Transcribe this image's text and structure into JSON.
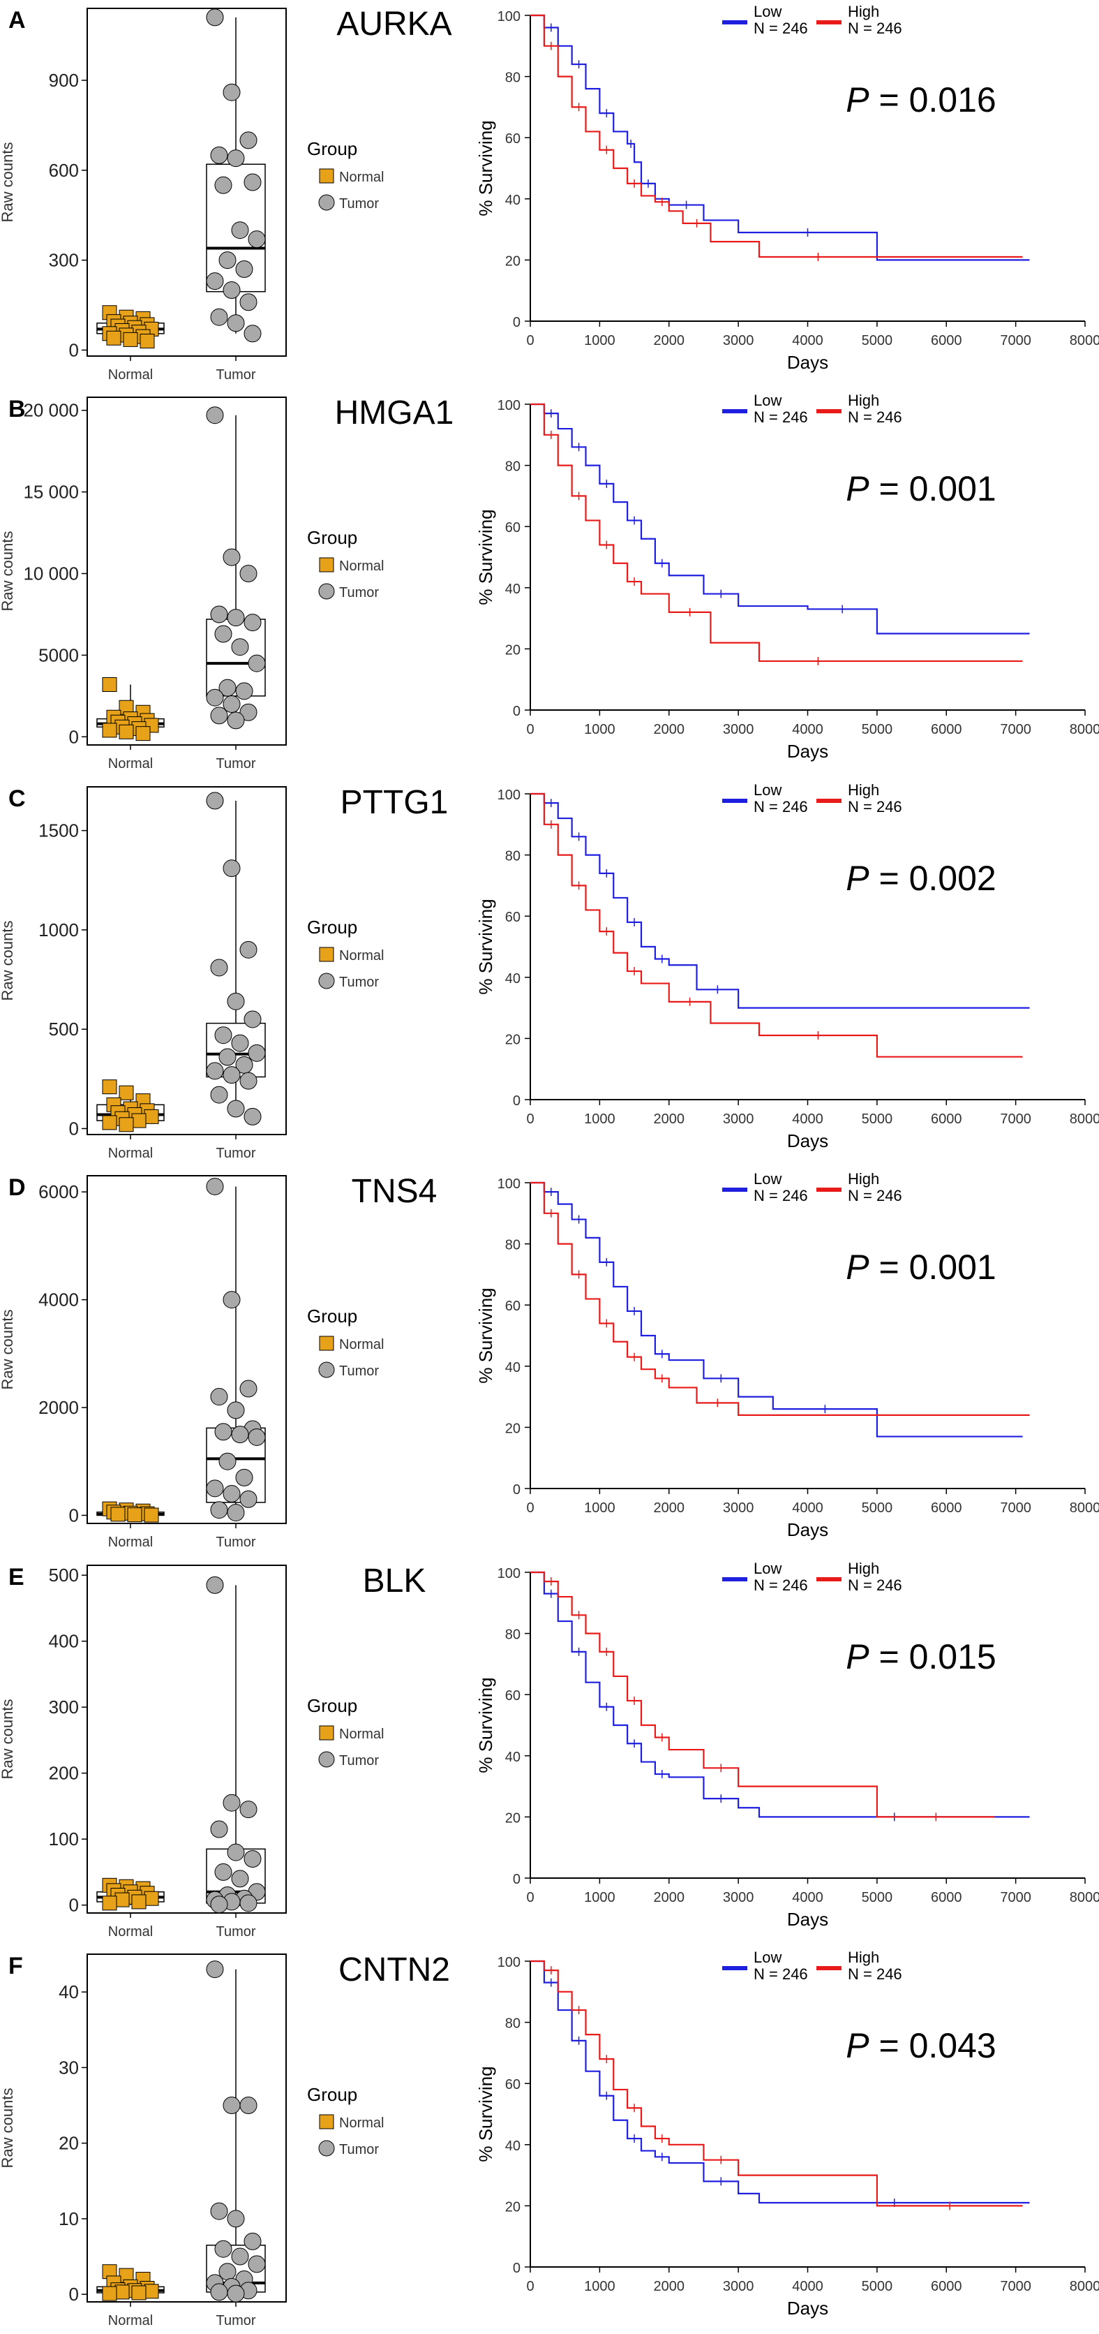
{
  "figure": {
    "panels": [
      {
        "letter": "A",
        "gene": "AURKA",
        "p_value": "0.016"
      },
      {
        "letter": "B",
        "gene": "HMGA1",
        "p_value": "0.001"
      },
      {
        "letter": "C",
        "gene": "PTTG1",
        "p_value": "0.002"
      },
      {
        "letter": "D",
        "gene": "TNS4",
        "p_value": "0.001"
      },
      {
        "letter": "E",
        "gene": "BLK",
        "p_value": "0.015"
      },
      {
        "letter": "F",
        "gene": "CNTN2",
        "p_value": "0.043"
      }
    ],
    "p_symbol": "P",
    "p_equals": " = ",
    "box_legend": {
      "title": "Group",
      "normal": "Normal",
      "tumor": "Tumor"
    },
    "km_legend": {
      "low": "Low",
      "high": "High",
      "n_low": "N = 246",
      "n_high": "N = 246"
    },
    "box_ylabel": "Raw counts",
    "box_categories": [
      "Normal",
      "Tumor"
    ],
    "km_ylabel": "% Surviving",
    "km_xlabel": "Days",
    "km_xticks": [
      "0",
      "1000",
      "2000",
      "3000",
      "4000",
      "5000",
      "6000",
      "7000",
      "8000"
    ],
    "km_yticks": [
      "0",
      "20",
      "40",
      "60",
      "80",
      "100"
    ]
  },
  "colors": {
    "normal": "#E8A21A",
    "tumor": "#A9A9A9",
    "low": "#1F1FE0",
    "high": "#E81A1A"
  },
  "chart_data": [
    {
      "type": "box",
      "gene": "AURKA",
      "ylabel": "Raw counts",
      "categories": [
        "Normal",
        "Tumor"
      ],
      "yticks": [
        "0",
        "300",
        "600",
        "900"
      ],
      "ylim": [
        -20,
        1140
      ],
      "normal": {
        "q1": 55,
        "median": 70,
        "q3": 90,
        "min": 30,
        "max": 125,
        "points": [
          125,
          110,
          105,
          95,
          90,
          85,
          80,
          75,
          70,
          65,
          60,
          55,
          50,
          45,
          40,
          35,
          30
        ]
      },
      "tumor": {
        "q1": 195,
        "median": 340,
        "q3": 620,
        "min": 55,
        "max": 1110,
        "points": [
          1110,
          860,
          700,
          650,
          640,
          560,
          550,
          400,
          370,
          300,
          270,
          230,
          200,
          160,
          110,
          90,
          55
        ]
      }
    },
    {
      "type": "box",
      "gene": "HMGA1",
      "ylabel": "Raw counts",
      "categories": [
        "Normal",
        "Tumor"
      ],
      "yticks": [
        "0",
        "5000",
        "10 000",
        "15 000",
        "20 000"
      ],
      "ylim": [
        -500,
        20800
      ],
      "normal": {
        "q1": 600,
        "median": 800,
        "q3": 1100,
        "min": 200,
        "max": 3200,
        "points": [
          3200,
          1800,
          1500,
          1200,
          1100,
          1000,
          900,
          800,
          700,
          600,
          500,
          400,
          300,
          200
        ]
      },
      "tumor": {
        "q1": 2500,
        "median": 4500,
        "q3": 7200,
        "min": 900,
        "max": 19700,
        "points": [
          19700,
          11000,
          10000,
          7500,
          7300,
          7000,
          6300,
          5500,
          4500,
          3000,
          2800,
          2400,
          2000,
          1500,
          1300,
          1000
        ]
      }
    },
    {
      "type": "box",
      "gene": "PTTG1",
      "ylabel": "Raw counts",
      "categories": [
        "Normal",
        "Tumor"
      ],
      "yticks": [
        "0",
        "500",
        "1000",
        "1500"
      ],
      "ylim": [
        -30,
        1720
      ],
      "normal": {
        "q1": 40,
        "median": 70,
        "q3": 120,
        "min": 10,
        "max": 210,
        "points": [
          210,
          180,
          140,
          120,
          100,
          90,
          80,
          70,
          60,
          50,
          40,
          30,
          20
        ]
      },
      "tumor": {
        "q1": 260,
        "median": 375,
        "q3": 530,
        "min": 60,
        "max": 1650,
        "points": [
          1650,
          1310,
          900,
          810,
          640,
          550,
          470,
          430,
          380,
          360,
          320,
          290,
          270,
          240,
          170,
          100,
          60
        ]
      }
    },
    {
      "type": "box",
      "gene": "TNS4",
      "ylabel": "Raw counts",
      "categories": [
        "Normal",
        "Tumor"
      ],
      "yticks": [
        "0",
        "2000",
        "4000",
        "6000"
      ],
      "ylim": [
        -150,
        6300
      ],
      "normal": {
        "q1": 0,
        "median": 20,
        "q3": 60,
        "min": 0,
        "max": 120,
        "points": [
          120,
          100,
          80,
          60,
          40,
          30,
          20,
          10,
          5
        ]
      },
      "tumor": {
        "q1": 240,
        "median": 1050,
        "q3": 1620,
        "min": 0,
        "max": 6100,
        "points": [
          6100,
          4000,
          2350,
          2200,
          1950,
          1600,
          1550,
          1500,
          1450,
          1000,
          700,
          500,
          400,
          300,
          100,
          50
        ]
      }
    },
    {
      "type": "box",
      "gene": "BLK",
      "ylabel": "Raw counts",
      "categories": [
        "Normal",
        "Tumor"
      ],
      "yticks": [
        "0",
        "100",
        "200",
        "300",
        "400",
        "500"
      ],
      "ylim": [
        -12,
        515
      ],
      "normal": {
        "q1": 5,
        "median": 12,
        "q3": 20,
        "min": 0,
        "max": 30,
        "points": [
          30,
          28,
          25,
          22,
          20,
          18,
          15,
          12,
          10,
          8,
          5,
          3
        ]
      },
      "tumor": {
        "q1": 3,
        "median": 20,
        "q3": 85,
        "min": 0,
        "max": 485,
        "points": [
          485,
          155,
          145,
          115,
          80,
          70,
          50,
          40,
          20,
          15,
          10,
          8,
          5,
          3,
          1
        ]
      }
    },
    {
      "type": "box",
      "gene": "CNTN2",
      "ylabel": "Raw counts",
      "categories": [
        "Normal",
        "Tumor"
      ],
      "yticks": [
        "0",
        "10",
        "20",
        "30",
        "40"
      ],
      "ylim": [
        -1,
        45
      ],
      "normal": {
        "q1": 0.2,
        "median": 0.5,
        "q3": 1.0,
        "min": 0,
        "max": 3,
        "points": [
          3,
          2.5,
          2,
          1.5,
          1,
          0.8,
          0.6,
          0.5,
          0.4,
          0.3,
          0.2,
          0.1
        ]
      },
      "tumor": {
        "q1": 0.3,
        "median": 1.5,
        "q3": 6.5,
        "min": 0,
        "max": 43,
        "points": [
          43,
          25,
          25,
          11,
          10,
          7,
          6,
          5,
          4,
          3,
          2,
          1.5,
          1,
          0.5,
          0.3,
          0.1
        ]
      }
    },
    {
      "type": "line",
      "gene": "AURKA",
      "xlabel": "Days",
      "ylabel": "% Surviving",
      "xlim": [
        0,
        8000
      ],
      "ylim": [
        0,
        100
      ],
      "p_value": "0.016",
      "series": [
        {
          "name": "Low",
          "x": [
            0,
            200,
            400,
            600,
            800,
            1000,
            1200,
            1400,
            1500,
            1600,
            1800,
            2000,
            2500,
            3000,
            5000,
            7200
          ],
          "y": [
            100,
            96,
            90,
            84,
            76,
            68,
            62,
            58,
            52,
            45,
            40,
            38,
            33,
            29,
            20,
            20
          ]
        },
        {
          "name": "High",
          "x": [
            0,
            200,
            400,
            600,
            800,
            1000,
            1200,
            1400,
            1600,
            1800,
            2000,
            2200,
            2600,
            3300,
            5000,
            7100
          ],
          "y": [
            100,
            90,
            80,
            70,
            62,
            56,
            50,
            45,
            41,
            39,
            36,
            32,
            26,
            21,
            21,
            21
          ]
        }
      ]
    },
    {
      "type": "line",
      "gene": "HMGA1",
      "xlabel": "Days",
      "ylabel": "% Surviving",
      "xlim": [
        0,
        8000
      ],
      "ylim": [
        0,
        100
      ],
      "p_value": "0.001",
      "series": [
        {
          "name": "Low",
          "x": [
            0,
            200,
            400,
            600,
            800,
            1000,
            1200,
            1400,
            1600,
            1800,
            2000,
            2500,
            3000,
            4000,
            5000,
            7200
          ],
          "y": [
            100,
            97,
            92,
            86,
            80,
            74,
            68,
            62,
            56,
            48,
            44,
            38,
            34,
            33,
            25,
            25
          ]
        },
        {
          "name": "High",
          "x": [
            0,
            200,
            400,
            600,
            800,
            1000,
            1200,
            1400,
            1600,
            2000,
            2600,
            3300,
            5000,
            7100
          ],
          "y": [
            100,
            90,
            80,
            70,
            62,
            54,
            48,
            42,
            38,
            32,
            22,
            16,
            16,
            16
          ]
        }
      ]
    },
    {
      "type": "line",
      "gene": "PTTG1",
      "xlabel": "Days",
      "ylabel": "% Surviving",
      "xlim": [
        0,
        8000
      ],
      "ylim": [
        0,
        100
      ],
      "p_value": "0.002",
      "series": [
        {
          "name": "Low",
          "x": [
            0,
            200,
            400,
            600,
            800,
            1000,
            1200,
            1400,
            1600,
            1800,
            2000,
            2400,
            3000,
            7200
          ],
          "y": [
            100,
            97,
            92,
            86,
            80,
            74,
            66,
            58,
            50,
            46,
            44,
            36,
            30,
            30
          ]
        },
        {
          "name": "High",
          "x": [
            0,
            200,
            400,
            600,
            800,
            1000,
            1200,
            1400,
            1600,
            2000,
            2600,
            3300,
            5000,
            7100
          ],
          "y": [
            100,
            90,
            80,
            70,
            62,
            55,
            48,
            42,
            38,
            32,
            25,
            21,
            14,
            14
          ]
        }
      ]
    },
    {
      "type": "line",
      "gene": "TNS4",
      "xlabel": "Days",
      "ylabel": "% Surviving",
      "xlim": [
        0,
        8000
      ],
      "ylim": [
        0,
        100
      ],
      "p_value": "0.001",
      "series": [
        {
          "name": "Low",
          "x": [
            0,
            200,
            400,
            600,
            800,
            1000,
            1200,
            1400,
            1600,
            1800,
            2000,
            2500,
            3000,
            3500,
            5000,
            7100
          ],
          "y": [
            100,
            97,
            93,
            88,
            82,
            74,
            66,
            58,
            50,
            44,
            42,
            36,
            30,
            26,
            17,
            17
          ]
        },
        {
          "name": "High",
          "x": [
            0,
            200,
            400,
            600,
            800,
            1000,
            1200,
            1400,
            1600,
            1800,
            2000,
            2400,
            3000,
            7200
          ],
          "y": [
            100,
            90,
            80,
            70,
            62,
            54,
            48,
            43,
            39,
            36,
            33,
            28,
            24,
            24
          ]
        }
      ]
    },
    {
      "type": "line",
      "gene": "BLK",
      "xlabel": "Days",
      "ylabel": "% Surviving",
      "xlim": [
        0,
        8000
      ],
      "ylim": [
        0,
        100
      ],
      "p_value": "0.015",
      "series": [
        {
          "name": "Low",
          "x": [
            0,
            200,
            400,
            600,
            800,
            1000,
            1200,
            1400,
            1600,
            1800,
            2000,
            2500,
            3000,
            3300,
            7200
          ],
          "y": [
            100,
            93,
            84,
            74,
            64,
            56,
            50,
            44,
            38,
            34,
            33,
            26,
            23,
            20,
            20
          ]
        },
        {
          "name": "High",
          "x": [
            0,
            200,
            400,
            600,
            800,
            1000,
            1200,
            1400,
            1600,
            1800,
            2000,
            2500,
            3000,
            5000,
            6700
          ],
          "y": [
            100,
            97,
            92,
            86,
            80,
            74,
            66,
            58,
            50,
            46,
            42,
            36,
            30,
            20,
            20
          ]
        }
      ]
    },
    {
      "type": "line",
      "gene": "CNTN2",
      "xlabel": "Days",
      "ylabel": "% Surviving",
      "xlim": [
        0,
        8000
      ],
      "ylim": [
        0,
        100
      ],
      "p_value": "0.043",
      "series": [
        {
          "name": "Low",
          "x": [
            0,
            200,
            400,
            600,
            800,
            1000,
            1200,
            1400,
            1600,
            1800,
            2000,
            2500,
            3000,
            3300,
            7200
          ],
          "y": [
            100,
            93,
            84,
            74,
            64,
            56,
            48,
            42,
            38,
            36,
            34,
            28,
            24,
            21,
            21
          ]
        },
        {
          "name": "High",
          "x": [
            0,
            200,
            400,
            600,
            800,
            1000,
            1200,
            1400,
            1600,
            1800,
            2000,
            2500,
            3000,
            5000,
            7100
          ],
          "y": [
            100,
            97,
            90,
            84,
            76,
            68,
            58,
            52,
            46,
            42,
            40,
            35,
            30,
            20,
            20
          ]
        }
      ]
    }
  ]
}
